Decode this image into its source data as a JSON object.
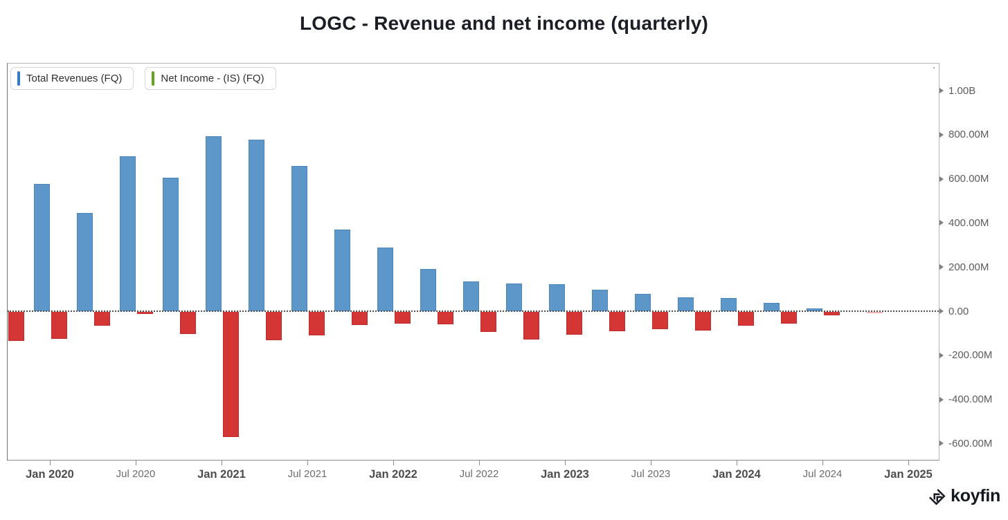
{
  "title": "LOGC - Revenue and net income (quarterly)",
  "legend": [
    {
      "label": "Total Revenues (FQ)",
      "marker_color": "#2e7cd6"
    },
    {
      "label": "Net Income - (IS) (FQ)",
      "marker_color": "#63a51f"
    }
  ],
  "watermark": {
    "label": "koyfin"
  },
  "chart_data": {
    "type": "bar",
    "title": "LOGC - Revenue and net income (quarterly)",
    "legend_position": "top-left",
    "grid": "zero-dotted-line-only",
    "unit": "USD",
    "ylim_millions": [
      -700,
      1150
    ],
    "categories": [
      "Sep 2019",
      "Dec 2019",
      "Mar 2020",
      "Jun 2020",
      "Sep 2020",
      "Dec 2020",
      "Mar 2021",
      "Jun 2021",
      "Sep 2021",
      "Dec 2021",
      "Mar 2022",
      "Jun 2022",
      "Sep 2022",
      "Dec 2022",
      "Mar 2023",
      "Jun 2023",
      "Sep 2023",
      "Dec 2023",
      "Mar 2024",
      "Jun 2024",
      "Sep 2024"
    ],
    "series": [
      {
        "name": "Total Revenues (FQ)",
        "fill_color": "#5d97c9",
        "border_color": "#4a86bb",
        "values_millions": [
          null,
          578,
          444,
          701,
          606,
          794,
          776,
          658,
          369,
          289,
          190,
          134,
          125,
          122,
          98,
          79,
          62,
          58,
          38,
          14,
          0
        ]
      },
      {
        "name": "Net Income - (IS) (FQ)",
        "fill_color": "#d43535",
        "border_color": "#bf2a2a",
        "values_millions": [
          -131,
          -123,
          -63,
          -8,
          -99,
          -566,
          -127,
          -106,
          -61,
          -52,
          -56,
          -90,
          -124,
          -104,
          -89,
          -78,
          -84,
          -62,
          -53,
          -17,
          -4
        ]
      }
    ],
    "y_axis": {
      "ticks": [
        {
          "label": "1.00B",
          "value_millions": 1000
        },
        {
          "label": "800.00M",
          "value_millions": 800
        },
        {
          "label": "600.00M",
          "value_millions": 600
        },
        {
          "label": "400.00M",
          "value_millions": 400
        },
        {
          "label": "200.00M",
          "value_millions": 200
        },
        {
          "label": "0.00",
          "value_millions": 0
        },
        {
          "label": "-200.00M",
          "value_millions": -200
        },
        {
          "label": "-400.00M",
          "value_millions": -400
        },
        {
          "label": "-600.00M",
          "value_millions": -600
        }
      ]
    },
    "x_axis": {
      "ticks": [
        {
          "label": "Jan 2020",
          "bold": true
        },
        {
          "label": "Jul 2020",
          "bold": false
        },
        {
          "label": "Jan 2021",
          "bold": true
        },
        {
          "label": "Jul 2021",
          "bold": false
        },
        {
          "label": "Jan 2022",
          "bold": true
        },
        {
          "label": "Jul 2022",
          "bold": false
        },
        {
          "label": "Jan 2023",
          "bold": true
        },
        {
          "label": "Jul 2023",
          "bold": false
        },
        {
          "label": "Jan 2024",
          "bold": true
        },
        {
          "label": "Jul 2024",
          "bold": false
        },
        {
          "label": "Jan 2025",
          "bold": true
        }
      ]
    }
  }
}
